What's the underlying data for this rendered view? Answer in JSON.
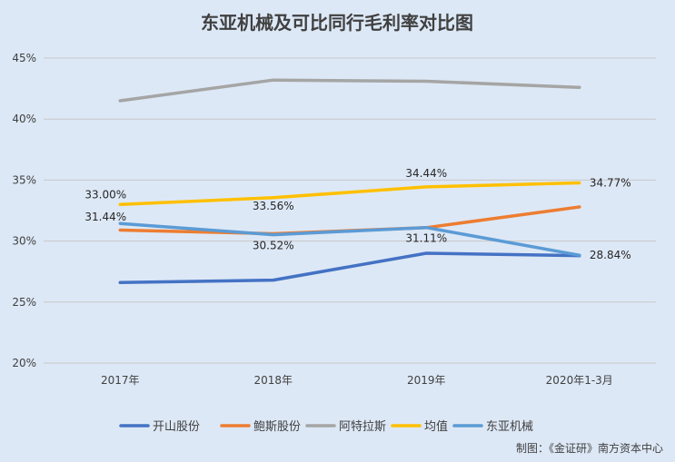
{
  "chart_data": {
    "type": "line",
    "title": "东亚机械及可比同行毛利率对比图",
    "categories": [
      "2017年",
      "2018年",
      "2019年",
      "2020年1-3月"
    ],
    "ylim": [
      20,
      45
    ],
    "yticks": [
      20,
      25,
      30,
      35,
      40,
      45
    ],
    "ytick_labels": [
      "20%",
      "25%",
      "30%",
      "35%",
      "40%",
      "45%"
    ],
    "grid": true,
    "legend_position": "bottom",
    "series": [
      {
        "name": "开山股份",
        "color": "#4472c4",
        "values": [
          26.6,
          26.8,
          29.0,
          28.8
        ]
      },
      {
        "name": "鲍斯股份",
        "color": "#ed7d31",
        "values": [
          30.9,
          30.6,
          31.1,
          32.8
        ]
      },
      {
        "name": "阿特拉斯",
        "color": "#a5a5a5",
        "values": [
          41.5,
          43.2,
          43.1,
          42.6
        ]
      },
      {
        "name": "均值",
        "color": "#ffc000",
        "values": [
          33.0,
          33.56,
          34.44,
          34.77
        ]
      },
      {
        "name": "东亚机械",
        "color": "#5b9bd5",
        "values": [
          31.44,
          30.52,
          31.11,
          28.84
        ]
      }
    ],
    "annotations": [
      {
        "series": "均值",
        "index": 0,
        "text": "33.00%"
      },
      {
        "series": "均值",
        "index": 1,
        "text": "33.56%"
      },
      {
        "series": "均值",
        "index": 2,
        "text": "34.44%"
      },
      {
        "series": "均值",
        "index": 3,
        "text": "34.77%"
      },
      {
        "series": "东亚机械",
        "index": 0,
        "text": "31.44%"
      },
      {
        "series": "东亚机械",
        "index": 1,
        "text": "30.52%"
      },
      {
        "series": "东亚机械",
        "index": 2,
        "text": "31.11%"
      },
      {
        "series": "东亚机械",
        "index": 3,
        "text": "28.84%"
      }
    ]
  },
  "credit": "制图：《金证研》南方资本中心"
}
